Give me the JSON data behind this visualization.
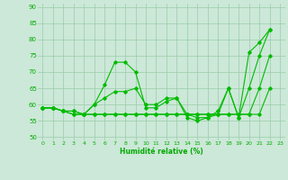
{
  "title": "",
  "xlabel": "Humidité relative (%)",
  "ylabel": "",
  "background_color": "#cce8d8",
  "grid_color": "#99ccaa",
  "line_color": "#00bb00",
  "xlim": [
    -0.5,
    23.5
  ],
  "ylim": [
    49,
    91
  ],
  "yticks": [
    50,
    55,
    60,
    65,
    70,
    75,
    80,
    85,
    90
  ],
  "xticks": [
    0,
    1,
    2,
    3,
    4,
    5,
    6,
    7,
    8,
    9,
    10,
    11,
    12,
    13,
    14,
    15,
    16,
    17,
    18,
    19,
    20,
    21,
    22,
    23
  ],
  "series": [
    [
      59,
      59,
      58,
      58,
      57,
      60,
      66,
      73,
      73,
      70,
      59,
      59,
      61,
      62,
      56,
      55,
      56,
      58,
      65,
      56,
      76,
      79,
      83
    ],
    [
      59,
      59,
      58,
      58,
      57,
      60,
      62,
      64,
      64,
      65,
      60,
      60,
      62,
      62,
      57,
      56,
      56,
      57,
      65,
      56,
      65,
      75,
      83
    ],
    [
      59,
      59,
      58,
      57,
      57,
      57,
      57,
      57,
      57,
      57,
      57,
      57,
      57,
      57,
      57,
      57,
      57,
      57,
      57,
      57,
      57,
      65,
      75
    ],
    [
      59,
      59,
      58,
      57,
      57,
      57,
      57,
      57,
      57,
      57,
      57,
      57,
      57,
      57,
      57,
      57,
      57,
      57,
      57,
      57,
      57,
      57,
      65
    ]
  ]
}
